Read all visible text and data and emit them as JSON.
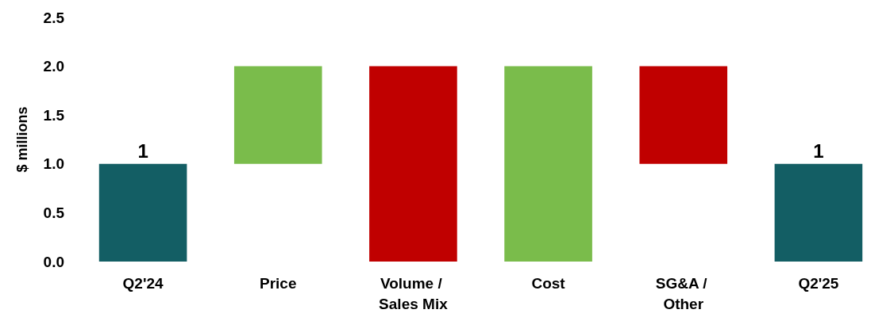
{
  "chart_data": {
    "type": "bar",
    "ylabel": "$ millions",
    "categories": [
      "Q2'24",
      "Price",
      "Volume / Sales Mix",
      "Cost",
      "SG&A / Other",
      "Q2'25"
    ],
    "base": [
      0,
      1,
      2,
      0,
      2,
      0
    ],
    "values": [
      1,
      1,
      -2,
      2,
      -1,
      1
    ],
    "colors": [
      "#135e64",
      "#7abc4b",
      "#c00000",
      "#7abc4b",
      "#c00000",
      "#135e64"
    ],
    "value_labels": [
      "1",
      null,
      null,
      null,
      null,
      "1"
    ],
    "ylim": [
      0,
      2.5
    ],
    "yticks": [
      {
        "value": 0,
        "label": "0.0"
      },
      {
        "value": 0.5,
        "label": "0.5"
      },
      {
        "value": 1,
        "label": "1.0"
      },
      {
        "value": 1.5,
        "label": "1.5"
      },
      {
        "value": 2,
        "label": "2.0"
      },
      {
        "value": 2.5,
        "label": "2.5"
      }
    ]
  }
}
